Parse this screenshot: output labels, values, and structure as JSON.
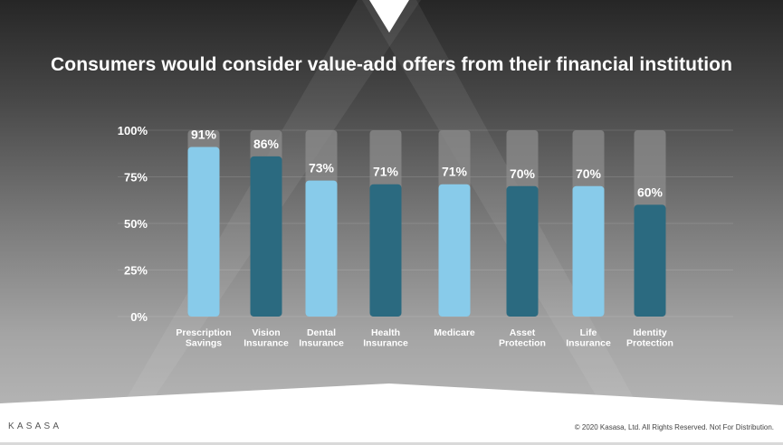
{
  "slide": {
    "title": "Consumers would consider value-add offers from their financial institution",
    "logo": "KASASA",
    "copyright": "© 2020 Kasasa, Ltd. All Rights Reserved. Not For Distribution."
  },
  "chart_data": {
    "type": "bar",
    "title": "Consumers would consider value-add offers from their financial institution",
    "xlabel": "",
    "ylabel": "",
    "ylim": [
      0,
      100
    ],
    "yticks": [
      0,
      25,
      50,
      75,
      100
    ],
    "ytick_labels": [
      "0%",
      "25%",
      "50%",
      "75%",
      "100%"
    ],
    "categories": [
      [
        "Prescription",
        "Savings"
      ],
      [
        "Vision",
        "Insurance"
      ],
      [
        "Dental",
        "Insurance"
      ],
      [
        "Health",
        "Insurance"
      ],
      [
        "Medicare"
      ],
      [
        "Asset",
        "Protection"
      ],
      [
        "Life",
        "Insurance"
      ],
      [
        "Identity",
        "Protection"
      ]
    ],
    "values": [
      91,
      86,
      73,
      71,
      71,
      70,
      70,
      60
    ],
    "value_labels": [
      "91%",
      "86%",
      "73%",
      "71%",
      "71%",
      "70%",
      "70%",
      "60%"
    ],
    "colors": [
      "#88cbea",
      "#2b6a80",
      "#88cbea",
      "#2b6a80",
      "#88cbea",
      "#2b6a80",
      "#88cbea",
      "#2b6a80"
    ],
    "track_color": "#8c8c8c",
    "grid": true,
    "legend": "none"
  }
}
